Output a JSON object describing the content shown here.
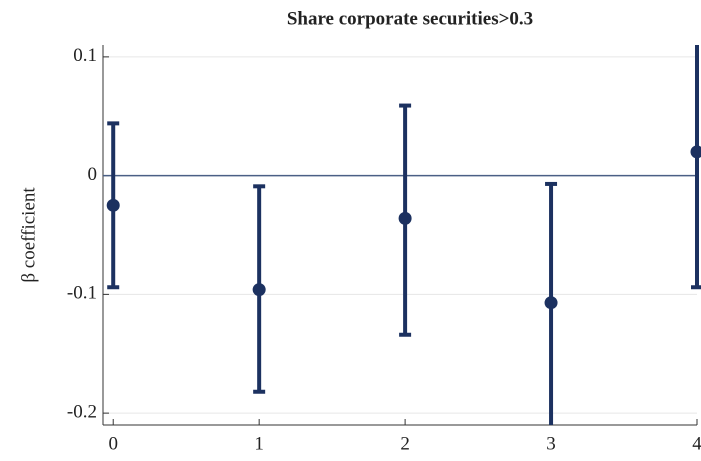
{
  "chart_data": {
    "type": "errorbar",
    "title": "Share corporate securities>0.3",
    "y_label": "β coefficient",
    "x": [
      0,
      1,
      2,
      3,
      4
    ],
    "values": [
      -0.025,
      -0.096,
      -0.036,
      -0.107,
      0.02
    ],
    "lower": [
      -0.094,
      -0.182,
      -0.134,
      -0.215,
      -0.094
    ],
    "upper": [
      0.044,
      -0.009,
      0.059,
      -0.007,
      0.134
    ],
    "color": "#1c3160",
    "reference_line": 0,
    "xlim": [
      -0.07,
      4
    ],
    "ylim": [
      -0.21,
      0.11
    ],
    "xticks": [
      0,
      1,
      2,
      3,
      4
    ],
    "yticks": [
      -0.2,
      -0.1,
      0,
      0.1
    ],
    "grid": true
  }
}
